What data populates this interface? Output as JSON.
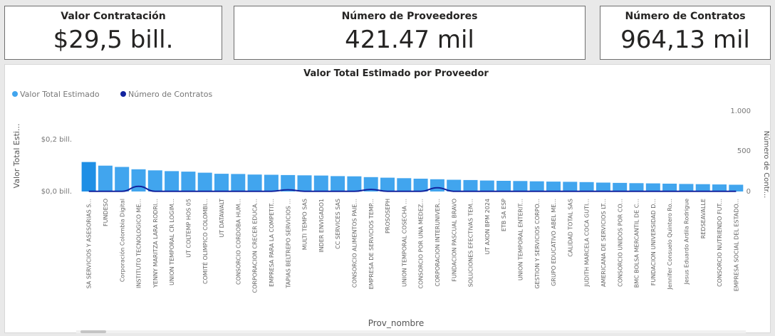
{
  "kpis": {
    "valor_contratacion": {
      "title": "Valor Contratación",
      "value": "$29,5 bill."
    },
    "numero_proveedores": {
      "title": "Número de Proveedores",
      "value": "421.47 mil"
    },
    "numero_contratos": {
      "title": "Número de Contratos",
      "value": "964,13 mil"
    }
  },
  "colors": {
    "bar": "#41a5ee",
    "line": "#12239e",
    "axis_text": "#777777",
    "title": "#252423"
  },
  "chart_data": {
    "type": "bar",
    "title": "Valor Total Estimado por Proveedor",
    "xlabel": "Prov_nombre",
    "ylabel": "Valor Total Esti...",
    "ylabel_right": "Número de Contr...",
    "legend_position": "top-left",
    "legend": {
      "bar": "Valor Total Estimado",
      "line": "Número de Contratos"
    },
    "y_ticks": [
      "$0,2 bill.",
      "$0,0 bill."
    ],
    "y2_ticks": [
      "1.000",
      "500",
      "0"
    ],
    "ylim": [
      0,
      0.3
    ],
    "y2lim": [
      0,
      1150
    ],
    "categories": [
      "SA SERVICIOS Y ASESORIAS S...",
      "FUNDESO",
      "Corporación Colombia Digital",
      "INSTITUTO TECNOLOGICO ME...",
      "YENNY MARITZA LARA RODRI...",
      "UNION TEMPORAL CR LOGIM...",
      "UT COLTEMP HOS 05",
      "COMITÉ OLIMPICO COLOMBI...",
      "UT DATAWALT",
      "CONSORCIO CORDOBA HUM...",
      "CORPORACION CRECER EDUCA...",
      "EMPRESA PARA LA COMPETIT...",
      "TAPIAS BELTREPO SERVICIOS ...",
      "MULTI TEMPO SAS",
      "INDER ENVIGADO1",
      "CC SERVICES SAS",
      "CONSORCIO ALIMENTOS PAIE...",
      "EMPRESA DE SERVICIOS TEMP...",
      "PROSOSEPH",
      "UNION TEMPORAL COSECHA ...",
      "CONSORCIO POR UNA MEDEZ...",
      "CORPORACION INTERUNIVER...",
      "FUNDACION PASCUAL BRAVO",
      "SOLUCIONES EFECTIVAS TEM...",
      "UT AXON BPM 2024",
      "ETB SA ESP",
      "UNION TEMPORAL ENTERIT...",
      "GESTION Y SERVICIOS CORPO...",
      "GRUPO EDUCATIVO ABEL ME...",
      "CALIDAD TOTAL SAS",
      "JUDITH MARCELA COCA GUTI...",
      "AMERICANA DE SERVICIOS LT...",
      "CONSORCIO UNIDOS POR CO...",
      "BMC BOLSA MERCANTIL DE C...",
      "FUNDACION UNIVERSIDAD D...",
      "Jennifer Consuelo Quintero Ro...",
      "Jesus Eduardo Ardila Rodrigue",
      "REDSEAVALLE",
      "CONSORCIO NUTRIENDO FUT...",
      "EMPRESA SOCIAL DEL ESTADO..."
    ],
    "series": [
      {
        "name": "Valor Total Estimado",
        "type": "bar",
        "values": [
          0.113,
          0.099,
          0.094,
          0.085,
          0.081,
          0.078,
          0.076,
          0.072,
          0.068,
          0.067,
          0.065,
          0.064,
          0.063,
          0.062,
          0.061,
          0.059,
          0.058,
          0.055,
          0.053,
          0.051,
          0.049,
          0.047,
          0.045,
          0.044,
          0.042,
          0.041,
          0.04,
          0.039,
          0.038,
          0.037,
          0.036,
          0.034,
          0.033,
          0.032,
          0.031,
          0.03,
          0.029,
          0.028,
          0.027,
          0.026
        ]
      },
      {
        "name": "Número de Contratos",
        "type": "line",
        "values": [
          3,
          3,
          3,
          75,
          3,
          3,
          3,
          3,
          3,
          3,
          3,
          3,
          25,
          3,
          3,
          3,
          3,
          30,
          3,
          3,
          3,
          55,
          3,
          3,
          3,
          3,
          3,
          3,
          3,
          3,
          3,
          3,
          3,
          3,
          3,
          3,
          3,
          3,
          3,
          3
        ]
      }
    ]
  }
}
